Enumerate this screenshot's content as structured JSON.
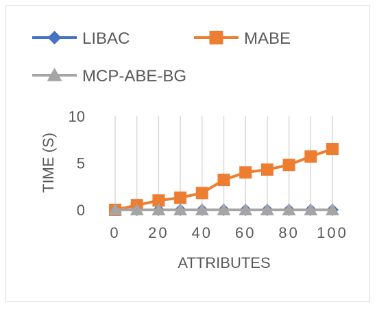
{
  "chart_data": {
    "type": "line",
    "x": [
      0,
      10,
      20,
      30,
      40,
      50,
      60,
      70,
      80,
      90,
      100
    ],
    "xticks": [
      "0",
      "20",
      "40",
      "60",
      "80",
      "100"
    ],
    "xtick_values": [
      0,
      20,
      40,
      60,
      80,
      100
    ],
    "yticks": [
      "0",
      "5",
      "10"
    ],
    "ytick_values": [
      0,
      5,
      10
    ],
    "xlim": [
      0,
      100
    ],
    "ylim": [
      0,
      10
    ],
    "xlabel": "ATTRIBUTES",
    "ylabel": "TIME (S)",
    "grid": "vertical",
    "legend_position": "top",
    "series": [
      {
        "name": "LIBAC",
        "color": "#4472c4",
        "marker": "diamond",
        "values": [
          0,
          0,
          0,
          0,
          0,
          0,
          0,
          0,
          0,
          0,
          0
        ]
      },
      {
        "name": "MABE",
        "color": "#ed7d31",
        "marker": "square",
        "values": [
          0,
          0.5,
          1.0,
          1.3,
          1.8,
          3.2,
          4.0,
          4.3,
          4.8,
          5.7,
          6.5
        ]
      },
      {
        "name": "MCP-ABE-BG",
        "color": "#a5a5a5",
        "marker": "triangle",
        "values": [
          0,
          0,
          0,
          0,
          0,
          0,
          0,
          0,
          0,
          0,
          0
        ]
      }
    ]
  }
}
